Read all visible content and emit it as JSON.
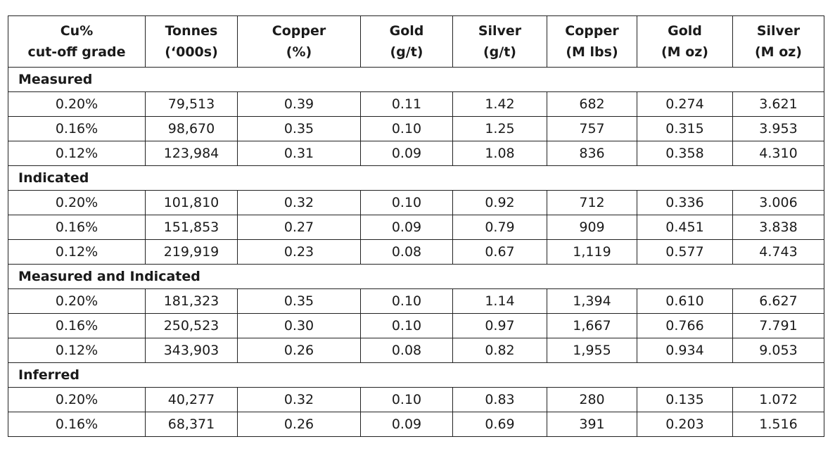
{
  "table": {
    "headers": [
      {
        "line1": "Cu%",
        "line2": "cut-off grade"
      },
      {
        "line1": "Tonnes",
        "line2": "(‘000s)"
      },
      {
        "line1": "Copper",
        "line2": "(%)"
      },
      {
        "line1": "Gold",
        "line2": "(g/t)"
      },
      {
        "line1": "Silver",
        "line2": "(g/t)"
      },
      {
        "line1": "Copper",
        "line2": "(M lbs)"
      },
      {
        "line1": "Gold",
        "line2": "(M oz)"
      },
      {
        "line1": "Silver",
        "line2": "(M oz)"
      }
    ],
    "sections": [
      {
        "title": "Measured",
        "rows": [
          [
            "0.20%",
            "79,513",
            "0.39",
            "0.11",
            "1.42",
            "682",
            "0.274",
            "3.621"
          ],
          [
            "0.16%",
            "98,670",
            "0.35",
            "0.10",
            "1.25",
            "757",
            "0.315",
            "3.953"
          ],
          [
            "0.12%",
            "123,984",
            "0.31",
            "0.09",
            "1.08",
            "836",
            "0.358",
            "4.310"
          ]
        ]
      },
      {
        "title": "Indicated",
        "rows": [
          [
            "0.20%",
            "101,810",
            "0.32",
            "0.10",
            "0.92",
            "712",
            "0.336",
            "3.006"
          ],
          [
            "0.16%",
            "151,853",
            "0.27",
            "0.09",
            "0.79",
            "909",
            "0.451",
            "3.838"
          ],
          [
            "0.12%",
            "219,919",
            "0.23",
            "0.08",
            "0.67",
            "1,119",
            "0.577",
            "4.743"
          ]
        ]
      },
      {
        "title": "Measured and Indicated",
        "rows": [
          [
            "0.20%",
            "181,323",
            "0.35",
            "0.10",
            "1.14",
            "1,394",
            "0.610",
            "6.627"
          ],
          [
            "0.16%",
            "250,523",
            "0.30",
            "0.10",
            "0.97",
            "1,667",
            "0.766",
            "7.791"
          ],
          [
            "0.12%",
            "343,903",
            "0.26",
            "0.08",
            "0.82",
            "1,955",
            "0.934",
            "9.053"
          ]
        ]
      },
      {
        "title": "Inferred",
        "rows": [
          [
            "0.20%",
            "40,277",
            "0.32",
            "0.10",
            "0.83",
            "280",
            "0.135",
            "1.072"
          ],
          [
            "0.16%",
            "68,371",
            "0.26",
            "0.09",
            "0.69",
            "391",
            "0.203",
            "1.516"
          ]
        ]
      }
    ]
  }
}
